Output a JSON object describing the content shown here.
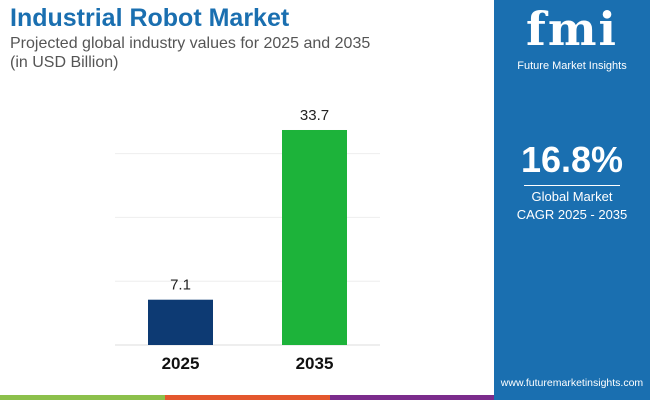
{
  "header": {
    "title": "Industrial Robot Market",
    "subtitle_line1": "Projected global industry values for 2025 and 2035",
    "subtitle_line2": "(in USD Billion)"
  },
  "panel": {
    "logo_text": "fmi",
    "brand": "Future Market Insights",
    "cagr_value": "16.8%",
    "cagr_label1": "Global Market",
    "cagr_label2": "CAGR 2025 - 2035",
    "url": "www.futuremarketinsights.com",
    "color": "#1a6fb0"
  },
  "chart_data": {
    "type": "bar",
    "categories": [
      "2025",
      "2035"
    ],
    "values": [
      7.1,
      33.7
    ],
    "data_labels": [
      "7.1",
      "33.7"
    ],
    "colors": [
      "#0d3a73",
      "#1db33a"
    ],
    "ylim": [
      0,
      35
    ],
    "grid": true,
    "title": "",
    "xlabel": "",
    "ylabel": ""
  },
  "stripes": [
    "#8cc04b",
    "#e4572e",
    "#7b2c8c"
  ]
}
